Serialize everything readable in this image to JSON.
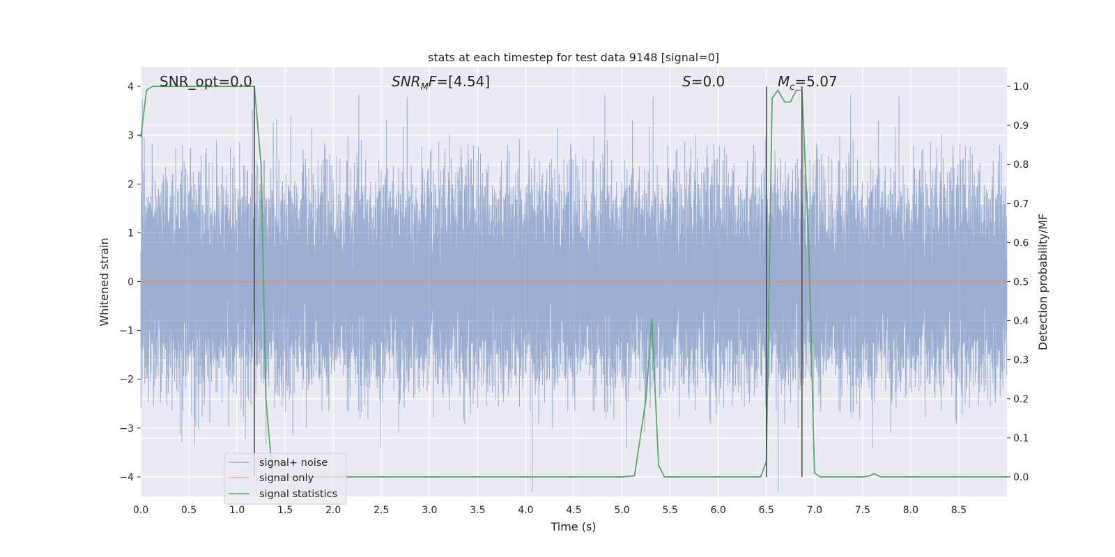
{
  "chart_data": {
    "type": "line",
    "title": "stats at each timestep for test data 9148 [signal=0]",
    "xlabel": "Time (s)",
    "ylabel": "Whitened strain",
    "y2label": "Detection probability/MF",
    "xlim": [
      0,
      9
    ],
    "ylim": [
      -4.4,
      4.4
    ],
    "y2lim": [
      -0.05,
      1.05
    ],
    "xticks": [
      0.0,
      0.5,
      1.0,
      1.5,
      2.0,
      2.5,
      3.0,
      3.5,
      4.0,
      4.5,
      5.0,
      5.5,
      6.0,
      6.5,
      7.0,
      7.5,
      8.0,
      8.5
    ],
    "xtick_labels": [
      "0.0",
      "0.5",
      "1.0",
      "1.5",
      "2.0",
      "2.5",
      "3.0",
      "3.5",
      "4.0",
      "4.5",
      "5.0",
      "5.5",
      "6.0",
      "6.5",
      "7.0",
      "7.5",
      "8.0",
      "8.5"
    ],
    "yticks": [
      -4,
      -3,
      -2,
      -1,
      0,
      1,
      2,
      3,
      4
    ],
    "ytick_labels": [
      "−4",
      "−3",
      "−2",
      "−1",
      "0",
      "1",
      "2",
      "3",
      "4"
    ],
    "y2ticks": [
      0.0,
      0.1,
      0.2,
      0.3,
      0.4,
      0.5,
      0.6,
      0.7,
      0.8,
      0.9,
      1.0
    ],
    "y2tick_labels": [
      "0.0",
      "0.1",
      "0.2",
      "0.3",
      "0.4",
      "0.5",
      "0.6",
      "0.7",
      "0.8",
      "0.9",
      "1.0"
    ],
    "grid": true,
    "legend_position": "lower-left",
    "annotations": [
      {
        "text": "SNR_opt=0.0",
        "x": 0.2
      },
      {
        "text": "SNR_MF=[4.54]",
        "x": 2.6
      },
      {
        "text": "S=0.0",
        "x": 5.6
      },
      {
        "text": "M_c=5.07",
        "x": 6.6
      }
    ],
    "vlines": [
      1.18,
      6.5,
      6.87
    ],
    "series": [
      {
        "name": "signal+ noise",
        "color": "#4c72b0",
        "axis": "left",
        "style": "noise",
        "sample_rate": 2048,
        "amplitude_std": 1.0
      },
      {
        "name": "signal only",
        "color": "#dd8452",
        "axis": "left",
        "style": "line",
        "x": [
          0.0,
          9.0
        ],
        "y": [
          0.0,
          0.0
        ]
      },
      {
        "name": "signal statistics",
        "color": "#55a868",
        "axis": "right",
        "style": "line",
        "x": [
          0.0,
          0.06,
          0.12,
          0.5,
          1.0,
          1.18,
          1.25,
          1.3,
          1.37,
          1.5,
          2.0,
          3.0,
          4.0,
          5.0,
          5.13,
          5.25,
          5.31,
          5.38,
          5.44,
          6.0,
          6.44,
          6.5,
          6.56,
          6.62,
          6.69,
          6.75,
          6.81,
          6.87,
          6.94,
          7.0,
          7.06,
          7.5,
          7.56,
          7.62,
          7.69,
          8.0,
          8.5,
          9.0
        ],
        "y": [
          0.87,
          0.99,
          1.0,
          1.0,
          1.0,
          1.0,
          0.8,
          0.2,
          0.0,
          0.0,
          0.0,
          0.0,
          0.0,
          0.0,
          0.003,
          0.2,
          0.405,
          0.03,
          0.0,
          0.0,
          0.0,
          0.04,
          0.97,
          0.99,
          0.96,
          0.96,
          0.99,
          0.99,
          0.6,
          0.01,
          0.0,
          0.0,
          0.002,
          0.008,
          0.0,
          0.0,
          0.0,
          0.0
        ]
      }
    ]
  }
}
